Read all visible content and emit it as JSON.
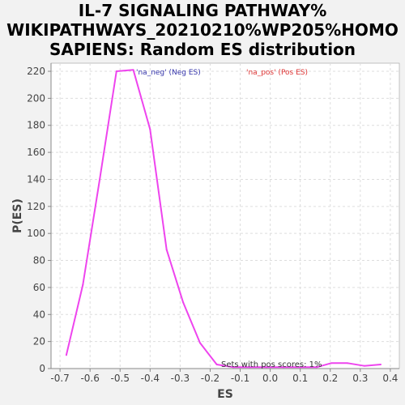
{
  "chart_data": {
    "type": "line",
    "title_lines": [
      "IL-7 SIGNALING PATHWAY%",
      "WIKIPATHWAYS_20210210%WP205%HOMO",
      "SAPIENS: Random ES distribution"
    ],
    "xlabel": "ES",
    "ylabel": "P(ES)",
    "xlim": [
      -0.73,
      0.43
    ],
    "ylim": [
      0,
      226
    ],
    "xticks": [
      -0.7,
      -0.6,
      -0.5,
      -0.4,
      -0.3,
      -0.2,
      -0.1,
      0.0,
      0.1,
      0.2,
      0.3,
      0.4
    ],
    "xtick_labels": [
      "-0.7",
      "-0.6",
      "-0.5",
      "-0.4",
      "-0.3",
      "-0.2",
      "-0.1",
      "0.0",
      "0.1",
      "0.2",
      "0.3",
      "0.4"
    ],
    "yticks": [
      0,
      20,
      40,
      60,
      80,
      100,
      120,
      140,
      160,
      180,
      200,
      220
    ],
    "ytick_labels": [
      "0",
      "20",
      "40",
      "60",
      "80",
      "100",
      "120",
      "140",
      "160",
      "180",
      "200",
      "220"
    ],
    "grid": true,
    "legend": [
      {
        "label": "'na_neg' (Neg ES)",
        "color": "#3333aa"
      },
      {
        "label": "'na_pos' (Pos ES)",
        "color": "#dd3333"
      }
    ],
    "series": [
      {
        "color": "#ee44ee",
        "x": [
          -0.679,
          -0.624,
          -0.568,
          -0.512,
          -0.456,
          -0.4,
          -0.345,
          -0.29,
          -0.234,
          -0.178,
          -0.123,
          -0.068,
          -0.012,
          0.044,
          0.1,
          0.155,
          0.203,
          0.258,
          0.313,
          0.368
        ],
        "y": [
          10,
          62,
          140,
          220,
          221,
          177,
          88,
          49,
          19,
          3,
          1,
          1,
          1,
          1,
          1,
          1,
          4,
          4,
          2,
          3
        ]
      }
    ],
    "annotation": "Sets with pos scores: 1%"
  }
}
